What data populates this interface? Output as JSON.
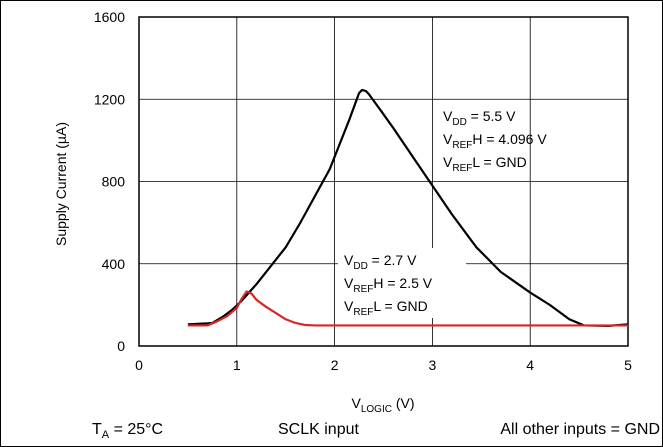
{
  "chart_data": {
    "type": "line",
    "xlabel": {
      "main": "V",
      "sub": "LOGIC",
      "unit": " (V)"
    },
    "ylabel": "Supply Current (µA)",
    "xlim": [
      0,
      5
    ],
    "ylim": [
      0,
      1600
    ],
    "x_ticks": [
      "0",
      "1",
      "2",
      "3",
      "4",
      "5"
    ],
    "y_ticks": [
      "0",
      "400",
      "800",
      "1200",
      "1600"
    ],
    "grid": true,
    "series": [
      {
        "color": "#000000",
        "points": [
          [
            0.5,
            105
          ],
          [
            0.7,
            110
          ],
          [
            0.75,
            112
          ],
          [
            0.85,
            140
          ],
          [
            0.95,
            175
          ],
          [
            1.05,
            220
          ],
          [
            1.2,
            300
          ],
          [
            1.35,
            390
          ],
          [
            1.5,
            480
          ],
          [
            1.65,
            600
          ],
          [
            1.8,
            730
          ],
          [
            1.95,
            860
          ],
          [
            2.05,
            980
          ],
          [
            2.15,
            1100
          ],
          [
            2.25,
            1230
          ],
          [
            2.28,
            1245
          ],
          [
            2.32,
            1240
          ],
          [
            2.35,
            1225
          ],
          [
            2.45,
            1160
          ],
          [
            2.6,
            1060
          ],
          [
            2.8,
            920
          ],
          [
            3.0,
            780
          ],
          [
            3.2,
            640
          ],
          [
            3.45,
            480
          ],
          [
            3.7,
            360
          ],
          [
            4.0,
            260
          ],
          [
            4.2,
            200
          ],
          [
            4.4,
            130
          ],
          [
            4.55,
            100
          ],
          [
            4.8,
            98
          ],
          [
            5.0,
            105
          ]
        ]
      },
      {
        "color": "#d62728",
        "points": [
          [
            0.5,
            100
          ],
          [
            0.7,
            100
          ],
          [
            0.8,
            120
          ],
          [
            0.9,
            145
          ],
          [
            1.0,
            185
          ],
          [
            1.05,
            230
          ],
          [
            1.1,
            265
          ],
          [
            1.15,
            255
          ],
          [
            1.2,
            225
          ],
          [
            1.3,
            190
          ],
          [
            1.4,
            160
          ],
          [
            1.5,
            130
          ],
          [
            1.6,
            112
          ],
          [
            1.7,
            102
          ],
          [
            1.8,
            100
          ],
          [
            2.5,
            100
          ],
          [
            3.5,
            100
          ],
          [
            5.0,
            100
          ]
        ]
      }
    ],
    "annotations": [
      {
        "lines": [
          {
            "main": "V",
            "sub": "DD",
            "rest": " = 5.5 V"
          },
          {
            "main": "V",
            "sub": "REF",
            "rest": "H = 4.096 V"
          },
          {
            "main": "V",
            "sub": "REF",
            "rest": "L = GND"
          }
        ]
      },
      {
        "lines": [
          {
            "main": "V",
            "sub": "DD",
            "rest": " = 2.7 V"
          },
          {
            "main": "V",
            "sub": "REF",
            "rest": "H = 2.5 V"
          },
          {
            "main": "V",
            "sub": "REF",
            "rest": "L = GND"
          }
        ]
      }
    ],
    "footer": {
      "temp": {
        "main": "T",
        "sub": "A",
        "rest": " = 25°C"
      },
      "middle": "SCLK input",
      "right": "All other inputs = GND"
    }
  }
}
